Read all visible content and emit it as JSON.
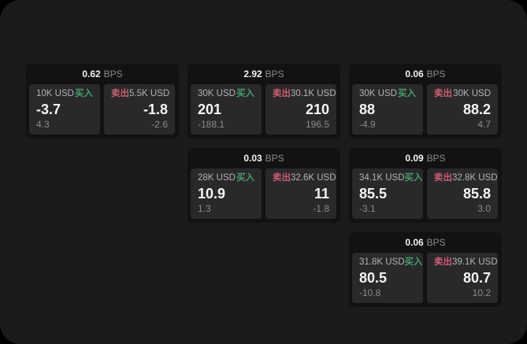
{
  "labels": {
    "bps": "BPS",
    "buy": "买入",
    "sell": "卖出"
  },
  "colors": {
    "buy": "#41a169",
    "sell": "#cf5b70",
    "window_bg": "#1b1b1c",
    "card_bg": "#121213",
    "panel_bg": "#29292b"
  },
  "cards": [
    {
      "row": 1,
      "col": 1,
      "bps": "0.62",
      "buy": {
        "amount": "10K USD",
        "price": "-3.7",
        "delta": "4.3"
      },
      "sell": {
        "amount": "5.5K USD",
        "price": "-1.8",
        "delta": "-2.6"
      }
    },
    {
      "row": 1,
      "col": 2,
      "bps": "2.92",
      "buy": {
        "amount": "30K USD",
        "price": "201",
        "delta": "-188.1"
      },
      "sell": {
        "amount": "30.1K USD",
        "price": "210",
        "delta": "196.5"
      }
    },
    {
      "row": 1,
      "col": 3,
      "bps": "0.06",
      "buy": {
        "amount": "30K USD",
        "price": "88",
        "delta": "-4.9"
      },
      "sell": {
        "amount": "30K USD",
        "price": "88.2",
        "delta": "4.7"
      }
    },
    {
      "row": 2,
      "col": 2,
      "bps": "0.03",
      "buy": {
        "amount": "28K USD",
        "price": "10.9",
        "delta": "1.3"
      },
      "sell": {
        "amount": "32.6K USD",
        "price": "11",
        "delta": "-1.8"
      }
    },
    {
      "row": 2,
      "col": 3,
      "bps": "0.09",
      "buy": {
        "amount": "34.1K USD",
        "price": "85.5",
        "delta": "-3.1"
      },
      "sell": {
        "amount": "32.8K USD",
        "price": "85.8",
        "delta": "3.0"
      }
    },
    {
      "row": 3,
      "col": 3,
      "bps": "0.06",
      "buy": {
        "amount": "31.8K USD",
        "price": "80.5",
        "delta": "-10.8"
      },
      "sell": {
        "amount": "39.1K USD",
        "price": "80.7",
        "delta": "10.2"
      }
    }
  ]
}
